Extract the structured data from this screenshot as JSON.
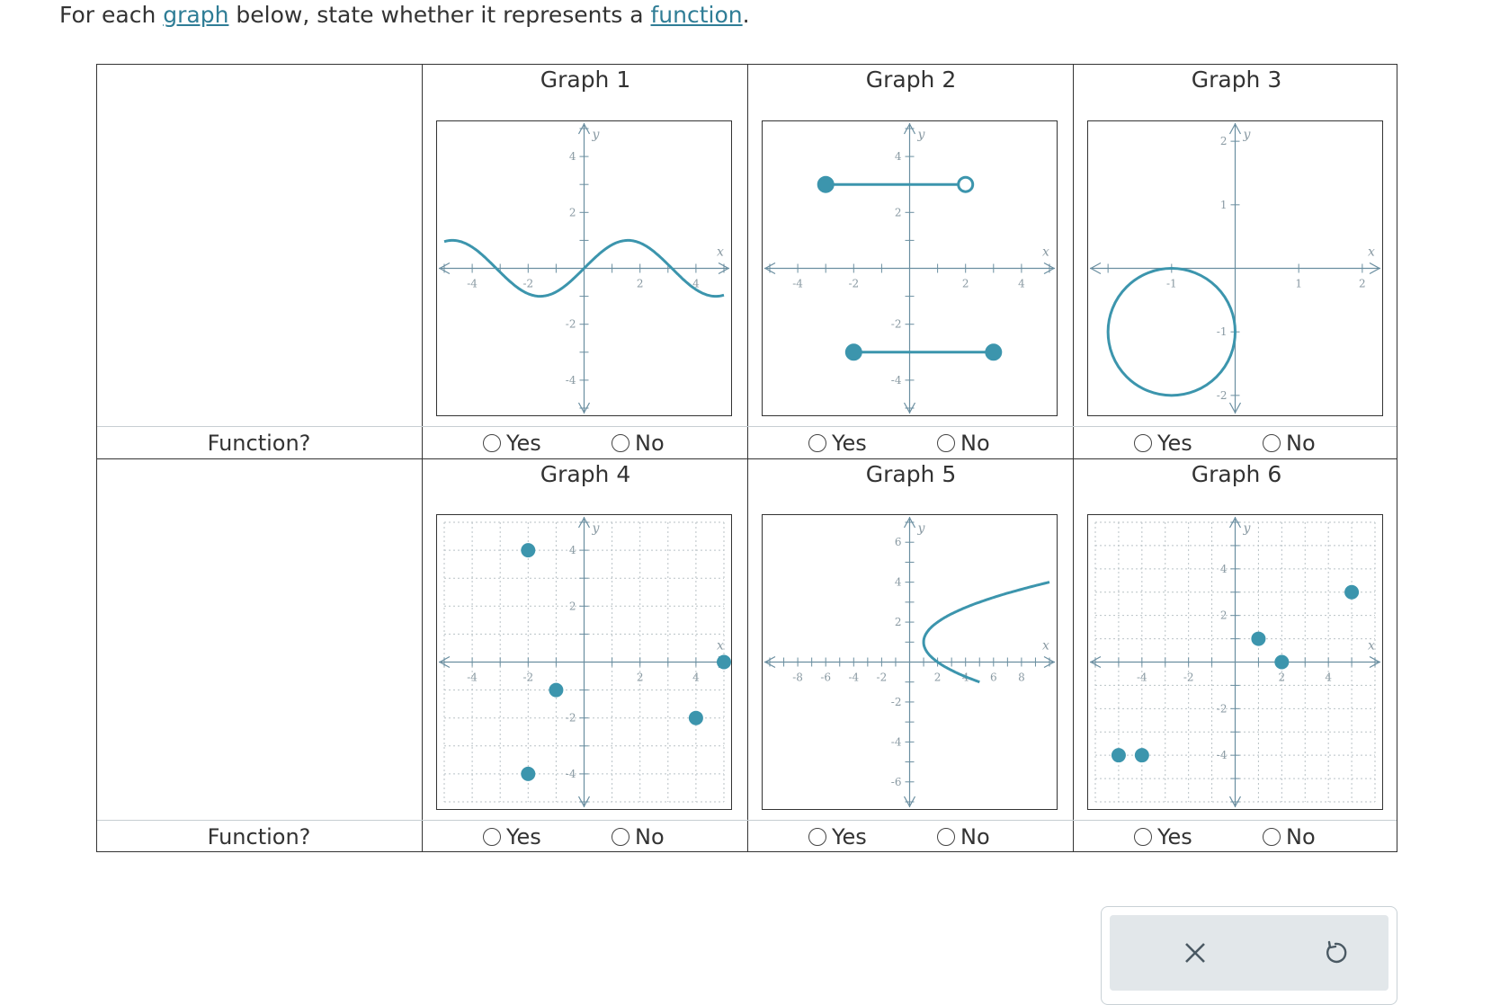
{
  "instruction": {
    "before": "For each ",
    "link1": "graph",
    "middle": " below, state whether it represents a ",
    "link2": "function",
    "end": "."
  },
  "row_label": "Function?",
  "option_yes": "Yes",
  "option_no": "No",
  "colors": {
    "curve": "#3c95ad",
    "axis": "#6a8ea0",
    "tick_text": "#8a9aa3",
    "grid": "#b9c2c6",
    "border": "#333333"
  },
  "toolbar": {
    "clear_icon": "close-icon",
    "reset_icon": "undo-icon"
  },
  "graphs": [
    {
      "title": "Graph 1",
      "xlim": [
        -5,
        5
      ],
      "ylim": [
        -5,
        5
      ],
      "grid": false,
      "x_ticks": [
        "-4",
        "-2",
        "2",
        "4"
      ],
      "y_ticks": [
        "4",
        "2",
        "-2",
        "-4"
      ],
      "x_label": "x",
      "y_label": "y",
      "elements": [
        {
          "kind": "function",
          "expr": "sine",
          "amplitude": 1,
          "period": 6.28,
          "x_range": [
            -5,
            5
          ]
        }
      ]
    },
    {
      "title": "Graph 2",
      "xlim": [
        -5,
        5
      ],
      "ylim": [
        -5,
        5
      ],
      "grid": false,
      "x_ticks": [
        "-4",
        "-2",
        "2",
        "4"
      ],
      "y_ticks": [
        "4",
        "2",
        "-2",
        "-4"
      ],
      "x_label": "x",
      "y_label": "y",
      "elements": [
        {
          "kind": "segment",
          "from": [
            -3,
            3
          ],
          "to": [
            2,
            3
          ],
          "from_closed": true,
          "to_closed": false
        },
        {
          "kind": "segment",
          "from": [
            -2,
            -3
          ],
          "to": [
            3,
            -3
          ],
          "from_closed": true,
          "to_closed": true
        }
      ]
    },
    {
      "title": "Graph 3",
      "xlim": [
        -2.2,
        2.2
      ],
      "ylim": [
        -2.2,
        2.2
      ],
      "grid": false,
      "x_ticks": [
        "-1",
        "1",
        "2"
      ],
      "y_ticks": [
        "2",
        "1",
        "-1",
        "-2"
      ],
      "x_label": "x",
      "y_label": "y",
      "elements": [
        {
          "kind": "circle",
          "center": [
            -1,
            -1
          ],
          "radius": 1
        }
      ]
    },
    {
      "title": "Graph 4",
      "xlim": [
        -5,
        5
      ],
      "ylim": [
        -5,
        5
      ],
      "grid": true,
      "x_ticks": [
        "-4",
        "-2",
        "2",
        "4"
      ],
      "y_ticks": [
        "4",
        "2",
        "-2",
        "-4"
      ],
      "x_label": "x",
      "y_label": "y",
      "elements": [
        {
          "kind": "points",
          "points": [
            [
              -2,
              4
            ],
            [
              -1,
              -1
            ],
            [
              -2,
              -4
            ],
            [
              4,
              -2
            ],
            [
              5,
              0
            ]
          ]
        }
      ]
    },
    {
      "title": "Graph 5",
      "xlim": [
        -10,
        10
      ],
      "ylim": [
        -7,
        7
      ],
      "grid": false,
      "x_ticks": [
        "-8",
        "-6",
        "-4",
        "-2",
        "2",
        "4",
        "6",
        "8"
      ],
      "y_ticks": [
        "6",
        "4",
        "2",
        "-2",
        "-4",
        "-6"
      ],
      "x_label": "x",
      "y_label": "y",
      "elements": [
        {
          "kind": "parabola_sideways",
          "vertex": [
            1,
            1
          ],
          "opens": "right",
          "y_range": [
            -1,
            4
          ]
        }
      ]
    },
    {
      "title": "Graph 6",
      "xlim": [
        -6,
        6
      ],
      "ylim": [
        -6,
        6
      ],
      "grid": true,
      "x_ticks": [
        "-4",
        "-2",
        "2",
        "4"
      ],
      "y_ticks": [
        "4",
        "2",
        "-2",
        "-4"
      ],
      "x_label": "x",
      "y_label": "y",
      "elements": [
        {
          "kind": "points",
          "points": [
            [
              -5,
              -4
            ],
            [
              -4,
              -4
            ],
            [
              1,
              1
            ],
            [
              2,
              0
            ],
            [
              5,
              3
            ]
          ]
        }
      ]
    }
  ]
}
